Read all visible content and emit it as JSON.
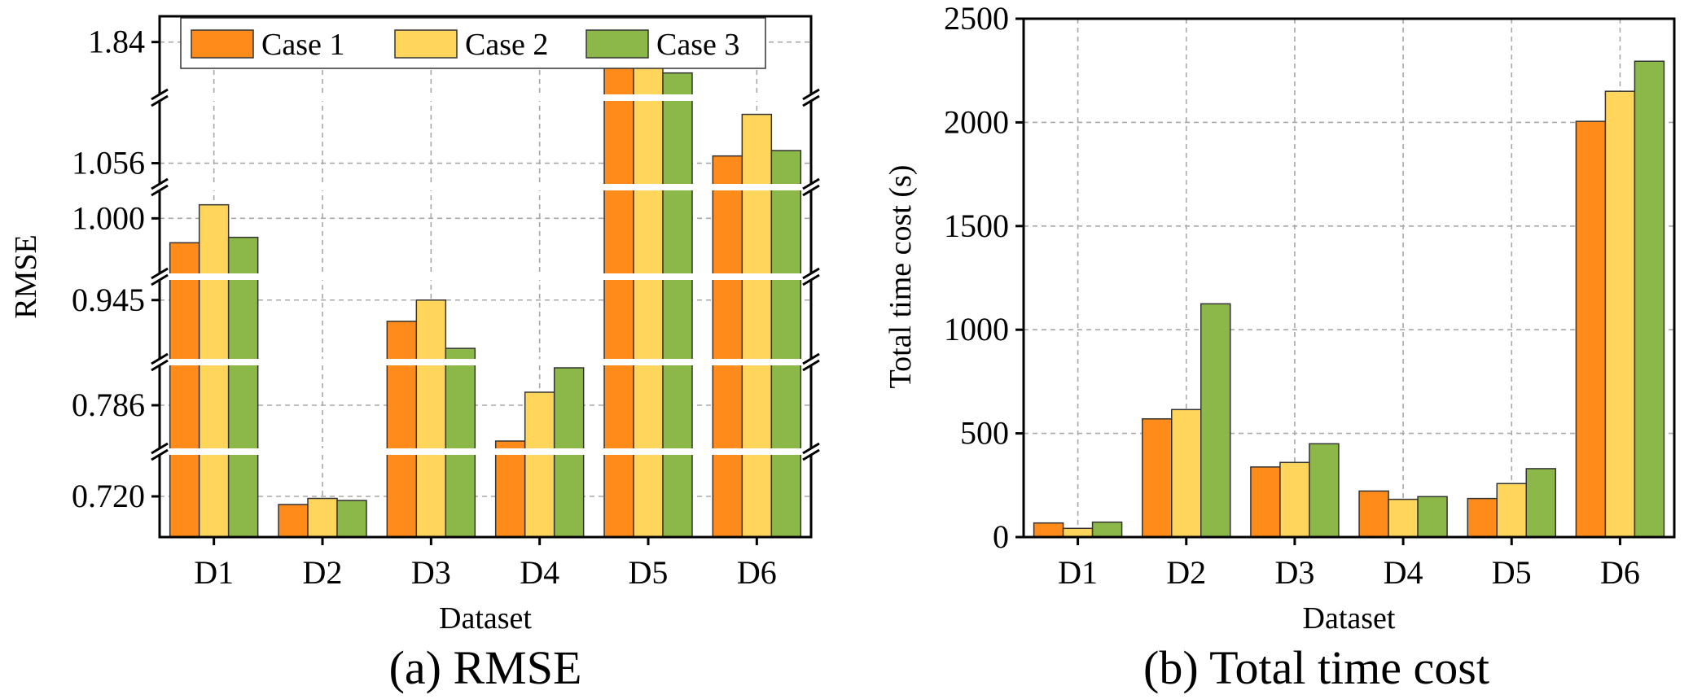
{
  "colors": {
    "case1": "#FF8C1A",
    "case2": "#FFD55C",
    "case3": "#8CB84A"
  },
  "chart_data": [
    {
      "type": "bar",
      "panel": "a",
      "caption": "(a) RMSE",
      "xlabel": "Dataset",
      "ylabel": "RMSE",
      "broken_y_axis": true,
      "y_tick_labels": [
        "0.720",
        "0.786",
        "0.945",
        "1.000",
        "1.056",
        "1.84"
      ],
      "categories": [
        "D1",
        "D2",
        "D3",
        "D4",
        "D5",
        "D6"
      ],
      "series": [
        {
          "name": "Case 1",
          "color": "#FF8C1A",
          "values": [
            0.991,
            0.716,
            0.934,
            0.764,
            1.83,
            1.06
          ]
        },
        {
          "name": "Case 2",
          "color": "#FFD55C",
          "values": [
            1.005,
            0.719,
            0.945,
            0.794,
            1.837,
            1.083
          ]
        },
        {
          "name": "Case 3",
          "color": "#8CB84A",
          "values": [
            0.993,
            0.718,
            0.92,
            0.809,
            1.828,
            1.063
          ]
        }
      ],
      "legend": "top",
      "grid": true
    },
    {
      "type": "bar",
      "panel": "b",
      "caption": "(b) Total time cost",
      "xlabel": "Dataset",
      "ylabel": "Total time cost (s)",
      "ylim": [
        0,
        2500
      ],
      "y_ticks": [
        0,
        500,
        1000,
        1500,
        2000,
        2500
      ],
      "categories": [
        "D1",
        "D2",
        "D3",
        "D4",
        "D5",
        "D6"
      ],
      "series": [
        {
          "name": "Case 1",
          "color": "#FF8C1A",
          "values": [
            68,
            570,
            338,
            222,
            186,
            2005
          ]
        },
        {
          "name": "Case 2",
          "color": "#FFD55C",
          "values": [
            42,
            615,
            360,
            182,
            258,
            2150
          ]
        },
        {
          "name": "Case 3",
          "color": "#8CB84A",
          "values": [
            72,
            1125,
            450,
            195,
            330,
            2295
          ]
        }
      ],
      "grid": true
    }
  ]
}
